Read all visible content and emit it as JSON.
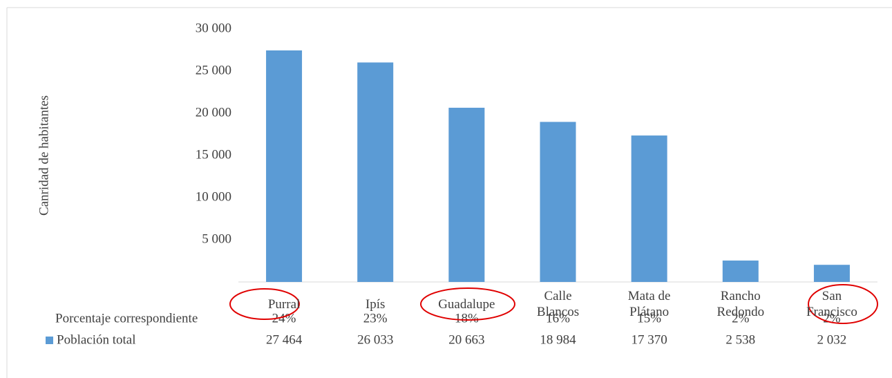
{
  "chart_data": {
    "type": "bar",
    "y_axis_label": "Canridad de habitantes",
    "categories": [
      "Purral",
      "Ipís",
      "Guadalupe",
      "Calle Blancos",
      "Mata de Plátano",
      "Rancho Redondo",
      "San Francisco"
    ],
    "series": [
      {
        "name": "Población total",
        "color": "#5b9bd5",
        "values": [
          27464,
          26033,
          20663,
          18984,
          17370,
          2538,
          2032
        ],
        "value_labels": [
          "27 464",
          "26 033",
          "20 663",
          "18 984",
          "17 370",
          "2 538",
          "2 032"
        ]
      }
    ],
    "percentages": {
      "name": "Porcentaje correspondiente",
      "values": [
        24,
        23,
        18,
        16,
        15,
        2,
        2
      ],
      "value_labels": [
        "24%",
        "23%",
        "18%",
        "16%",
        "15%",
        "2%",
        "2%"
      ]
    },
    "ylim": [
      0,
      30000
    ],
    "yticks": [
      {
        "value": 5000,
        "label": "5 000"
      },
      {
        "value": 10000,
        "label": "10 000"
      },
      {
        "value": 15000,
        "label": "15 000"
      },
      {
        "value": 20000,
        "label": "20 000"
      },
      {
        "value": 25000,
        "label": "25 000"
      },
      {
        "value": 30000,
        "label": "30 000"
      }
    ]
  }
}
